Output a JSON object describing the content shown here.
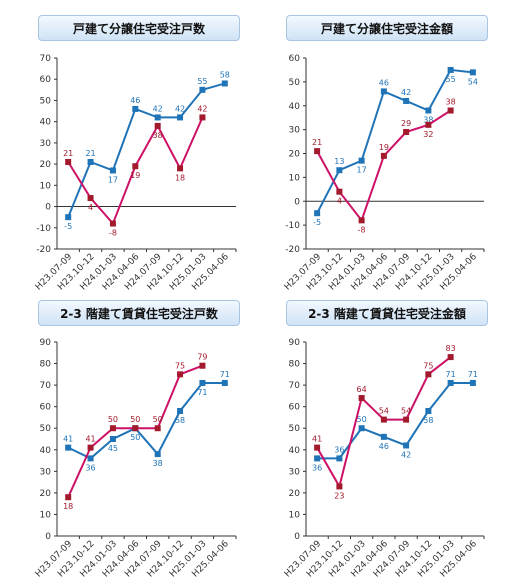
{
  "colors": {
    "series1": "#1f73b7",
    "series2": "#cc1166",
    "marker2": "#a21a2c",
    "title_border": "#a9c6e1"
  },
  "chart_data": [
    {
      "type": "line",
      "title": "戸建て分譲住宅受注戸数",
      "categories": [
        "H23.07-09",
        "H23.10-12",
        "H24.01-03",
        "H24.04-06",
        "H24.07-09",
        "H24.10-12",
        "H25.01-03",
        "H25.04-06"
      ],
      "yticks": [
        "70",
        "60",
        "50",
        "40",
        "30",
        "20",
        "10",
        "0",
        "-10",
        "-20"
      ],
      "ylim": [
        -20,
        70
      ],
      "ystep": 10,
      "series": [
        {
          "values": [
            -5,
            21,
            17,
            46,
            42,
            42,
            55,
            58
          ],
          "labels": [
            "-5",
            "21",
            "17",
            "46",
            "42",
            "42",
            "55",
            "58"
          ]
        },
        {
          "values": [
            21,
            4,
            -8,
            19,
            38,
            18,
            42,
            null
          ],
          "labels": [
            "21",
            "4",
            "-8",
            "19",
            "38",
            "18",
            "42",
            ""
          ]
        }
      ]
    },
    {
      "type": "line",
      "title": "戸建て分譲住宅受注金額",
      "categories": [
        "H23.07-09",
        "H23.10-12",
        "H24.01-03",
        "H24.04-06",
        "H24.07-09",
        "H24.10-12",
        "H25.01-03",
        "H25.04-06"
      ],
      "yticks": [
        "60",
        "50",
        "40",
        "30",
        "20",
        "10",
        "0",
        "-10",
        "-20"
      ],
      "ylim": [
        -20,
        60
      ],
      "ystep": 10,
      "series": [
        {
          "values": [
            -5,
            13,
            17,
            46,
            42,
            38,
            55,
            54
          ],
          "labels": [
            "-5",
            "13",
            "17",
            "46",
            "42",
            "38",
            "55",
            "54"
          ]
        },
        {
          "values": [
            21,
            4,
            -8,
            19,
            29,
            32,
            38,
            null
          ],
          "labels": [
            "21",
            "4",
            "-8",
            "19",
            "29",
            "32",
            "38",
            ""
          ]
        }
      ]
    },
    {
      "type": "line",
      "title": "2-3 階建て賃貸住宅受注戸数",
      "categories": [
        "H23.07-09",
        "H23.10-12",
        "H24.01-03",
        "H24.04-06",
        "H24.07-09",
        "H24.10-12",
        "H25.01-03",
        "H25.04-06"
      ],
      "yticks": [
        "90",
        "80",
        "70",
        "60",
        "50",
        "40",
        "30",
        "20",
        "10",
        "0"
      ],
      "ylim": [
        0,
        90
      ],
      "ystep": 10,
      "series": [
        {
          "values": [
            41,
            36,
            45,
            50,
            38,
            58,
            71,
            71
          ],
          "labels": [
            "41",
            "36",
            "45",
            "50",
            "38",
            "58",
            "71",
            "71"
          ]
        },
        {
          "values": [
            18,
            41,
            50,
            50,
            50,
            75,
            79,
            null
          ],
          "labels": [
            "18",
            "41",
            "50",
            "50",
            "50",
            "75",
            "79",
            ""
          ]
        }
      ]
    },
    {
      "type": "line",
      "title": "2-3 階建て賃貸住宅受注金額",
      "categories": [
        "H23.07-09",
        "H23.10-12",
        "H24.01-03",
        "H24.04-06",
        "H24.07-09",
        "H24.10-12",
        "H25.01-03",
        "H25.04-06"
      ],
      "yticks": [
        "90",
        "80",
        "70",
        "60",
        "50",
        "40",
        "30",
        "20",
        "10",
        "0"
      ],
      "ylim": [
        0,
        90
      ],
      "ystep": 10,
      "series": [
        {
          "values": [
            36,
            36,
            50,
            46,
            42,
            58,
            71,
            71
          ],
          "labels": [
            "36",
            "36",
            "50",
            "46",
            "42",
            "58",
            "71",
            "71"
          ]
        },
        {
          "values": [
            41,
            23,
            64,
            54,
            54,
            75,
            83,
            null
          ],
          "labels": [
            "41",
            "23",
            "64",
            "54",
            "54",
            "75",
            "83",
            ""
          ]
        }
      ]
    }
  ]
}
